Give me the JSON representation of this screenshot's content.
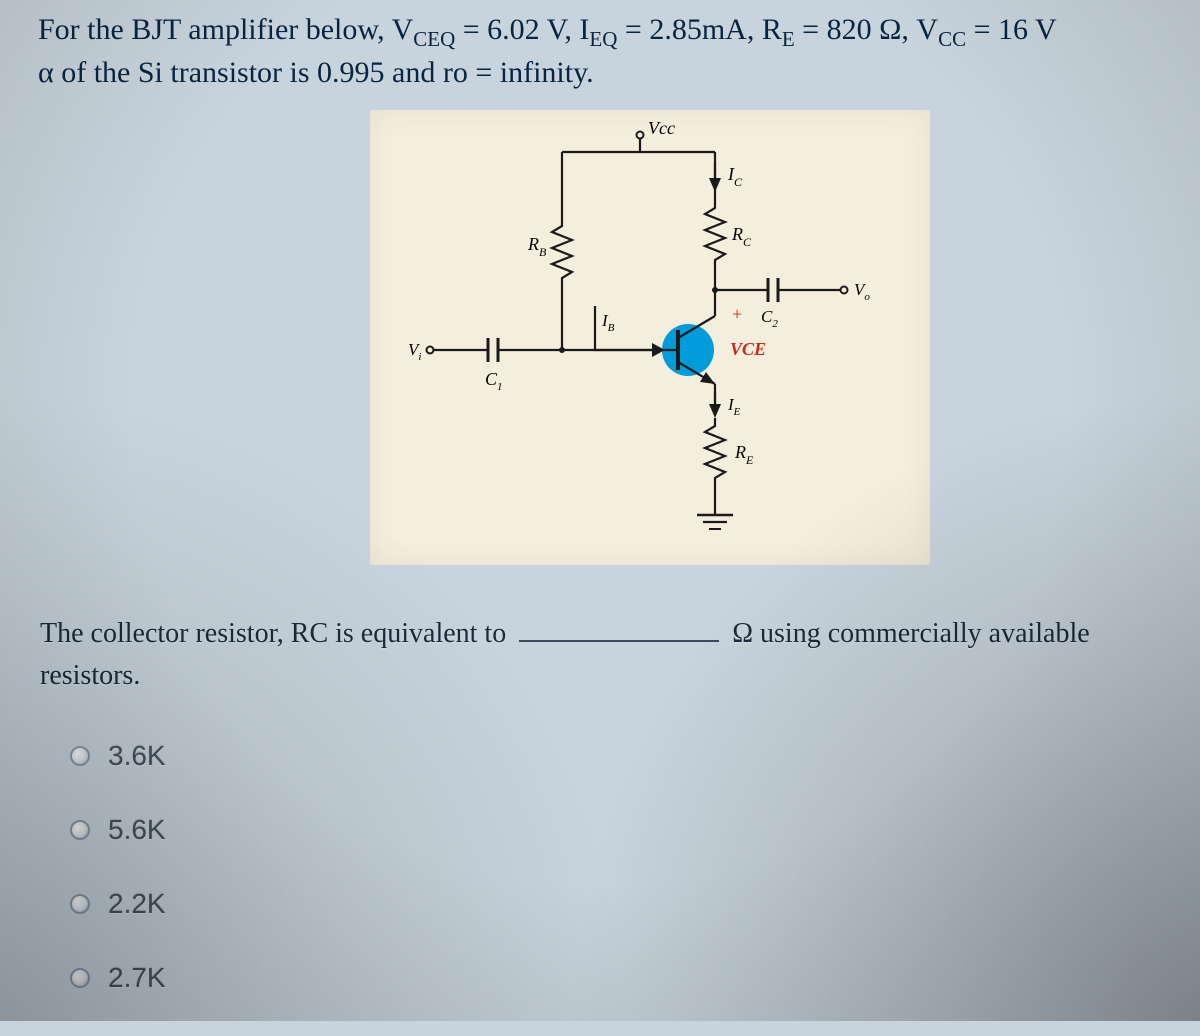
{
  "problem": {
    "line1_html": "For the BJT amplifier below, V<span class=sub>CEQ</span> = 6.02 V, I<span class=sub>EQ</span> = 2.85mA, R<span class=sub>E</span> = 820 Ω, V<span class=sub>CC</span> = 16 V",
    "line2_html": "α of the Si transistor is 0.995 and ro = infinity."
  },
  "diagram": {
    "bg_color": "#f4eedc",
    "wire_color": "#1a1a1a",
    "bjt_fill": "#009bd9",
    "red_color": "#c62b1f",
    "labels": {
      "Vcc": "Vcc",
      "Ic": "I",
      "Ic_sub": "C",
      "Rc": "R",
      "Rc_sub": "C",
      "Rb": "R",
      "Rb_sub": "B",
      "Ib": "I",
      "Ib_sub": "B",
      "Vi": "V",
      "Vi_sub": "i",
      "C1": "C",
      "C1_sub": "1",
      "C2": "C",
      "C2_sub": "2",
      "Vo": "V",
      "Vo_sub": "o",
      "VCE": "VCE",
      "Ie": "I",
      "Ie_sub": "E",
      "Re": "R",
      "Re_sub": "E",
      "plus": "+"
    }
  },
  "question": {
    "before": "The collector resistor, RC is equivalent to ",
    "after": " Ω using commercially available resistors."
  },
  "options": [
    "3.6K",
    "5.6K",
    "2.2K",
    "2.7K"
  ],
  "colors": {
    "page_bg": "#c8d4dd",
    "problem_text": "#0a2440",
    "question_text": "#1a2a3a",
    "option_text": "#44535f"
  }
}
